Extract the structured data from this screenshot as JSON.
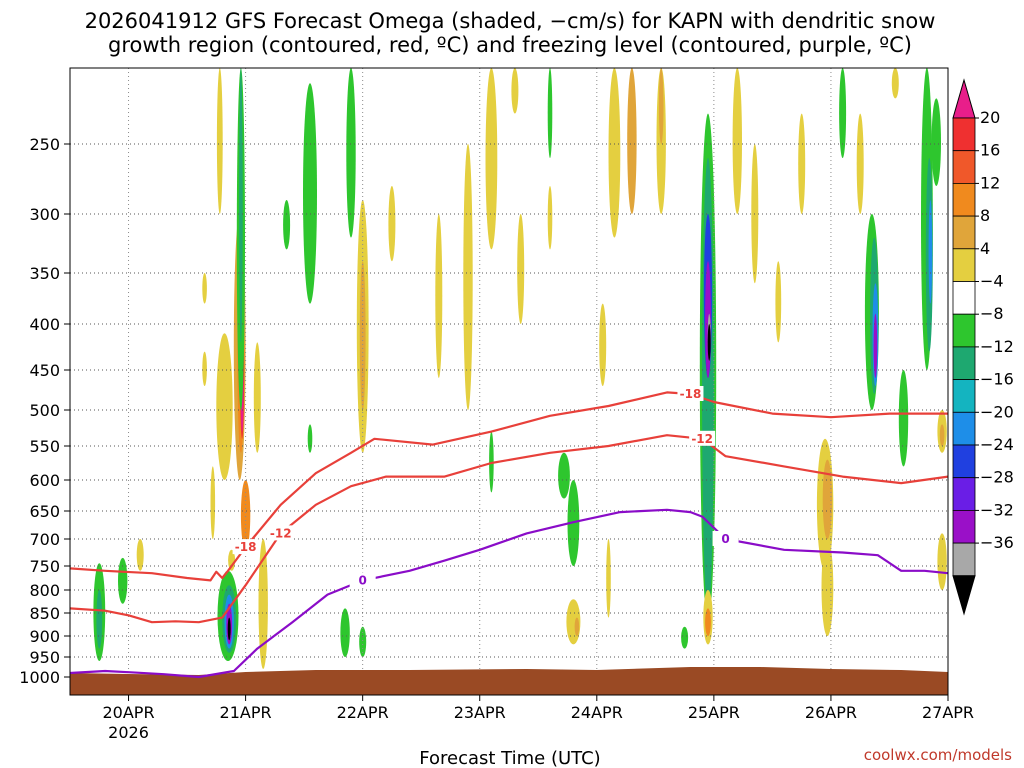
{
  "chart_data": {
    "type": "heatmap",
    "title_line1": "2026041912 GFS Forecast Omega (shaded, −cm/s) for KAPN with dendritic snow",
    "title_line2": "growth region (contoured, red, ºC) and freezing level (contoured, purple, ºC)",
    "xlabel": "Forecast Time (UTC)",
    "credit": "coolwx.com/models",
    "x_ticks": [
      "20APR",
      "21APR",
      "22APR",
      "23APR",
      "24APR",
      "25APR",
      "26APR",
      "27APR"
    ],
    "x_year": "2026",
    "x_range_days": [
      19.5,
      27
    ],
    "y_ticks": [
      "250",
      "300",
      "350",
      "400",
      "450",
      "500",
      "550",
      "600",
      "650",
      "700",
      "750",
      "800",
      "850",
      "900",
      "950",
      "1000"
    ],
    "y_range_hpa": [
      200,
      1050
    ],
    "colorbar": {
      "labels": [
        "20",
        "16",
        "12",
        "8",
        "4",
        "−4",
        "−8",
        "−12",
        "−16",
        "−20",
        "−24",
        "−28",
        "−32",
        "−36"
      ],
      "colors": [
        "#e81e8a",
        "#ef3030",
        "#f0582a",
        "#f08a1e",
        "#e0a53a",
        "#e4cf40",
        "#ffffff",
        "#2ec62e",
        "#1ea870",
        "#14b4c0",
        "#1e8ee8",
        "#2040e0",
        "#6a1ee6",
        "#9a10c8",
        "#a8a8a8",
        "#000000"
      ]
    },
    "contours": {
      "red": [
        {
          "label": "-18",
          "points": [
            [
              19.5,
              755
            ],
            [
              19.8,
              760
            ],
            [
              20.2,
              765
            ],
            [
              20.5,
              775
            ],
            [
              20.7,
              780
            ],
            [
              20.75,
              762
            ],
            [
              20.8,
              775
            ],
            [
              20.85,
              760
            ],
            [
              21.0,
              715
            ],
            [
              21.3,
              640
            ],
            [
              21.6,
              590
            ],
            [
              21.9,
              560
            ],
            [
              22.1,
              540
            ],
            [
              22.6,
              548
            ],
            [
              23.1,
              530
            ],
            [
              23.6,
              508
            ],
            [
              24.1,
              495
            ],
            [
              24.6,
              478
            ],
            [
              24.8,
              480
            ],
            [
              25.0,
              490
            ],
            [
              25.5,
              505
            ],
            [
              26.0,
              510
            ],
            [
              26.5,
              505
            ],
            [
              27.0,
              505
            ]
          ]
        },
        {
          "label": "-12",
          "points": [
            [
              19.5,
              840
            ],
            [
              19.8,
              845
            ],
            [
              20.0,
              855
            ],
            [
              20.2,
              870
            ],
            [
              20.4,
              868
            ],
            [
              20.6,
              870
            ],
            [
              20.8,
              860
            ],
            [
              21.0,
              790
            ],
            [
              21.3,
              690
            ],
            [
              21.6,
              640
            ],
            [
              21.9,
              610
            ],
            [
              22.2,
              595
            ],
            [
              22.7,
              595
            ],
            [
              23.1,
              575
            ],
            [
              23.6,
              560
            ],
            [
              24.1,
              550
            ],
            [
              24.6,
              535
            ],
            [
              24.9,
              540
            ],
            [
              25.1,
              565
            ],
            [
              25.6,
              580
            ],
            [
              26.1,
              595
            ],
            [
              26.6,
              605
            ],
            [
              27.0,
              595
            ]
          ]
        }
      ],
      "purple": [
        {
          "label": "0",
          "points": [
            [
              19.5,
              990
            ],
            [
              19.8,
              985
            ],
            [
              20.0,
              988
            ],
            [
              20.3,
              993
            ],
            [
              20.6,
              1000
            ],
            [
              20.9,
              985
            ],
            [
              21.1,
              930
            ],
            [
              21.4,
              870
            ],
            [
              21.7,
              810
            ],
            [
              22.0,
              780
            ],
            [
              22.4,
              760
            ],
            [
              22.7,
              740
            ],
            [
              23.0,
              720
            ],
            [
              23.4,
              690
            ],
            [
              23.8,
              670
            ],
            [
              24.2,
              652
            ],
            [
              24.6,
              648
            ],
            [
              24.8,
              652
            ],
            [
              24.9,
              660
            ],
            [
              25.1,
              700
            ],
            [
              25.6,
              720
            ],
            [
              26.1,
              725
            ],
            [
              26.4,
              730
            ],
            [
              26.6,
              760
            ],
            [
              26.8,
              760
            ],
            [
              27.0,
              765
            ]
          ]
        }
      ]
    }
  }
}
